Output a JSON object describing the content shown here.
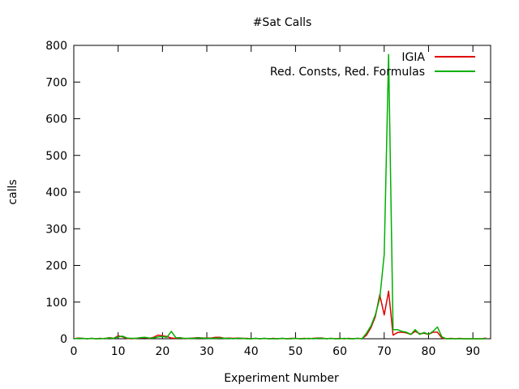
{
  "chart_data": {
    "type": "line",
    "title": "#Sat Calls",
    "xlabel": "Experiment Number",
    "ylabel": "calls",
    "xlim": [
      0,
      94
    ],
    "ylim": [
      0,
      800
    ],
    "xticks": [
      0,
      10,
      20,
      30,
      40,
      50,
      60,
      70,
      80,
      90
    ],
    "yticks": [
      0,
      100,
      200,
      300,
      400,
      500,
      600,
      700,
      800
    ],
    "grid": false,
    "legend_position": "top-right",
    "series": [
      {
        "name": "IGIA",
        "color": "#e00000",
        "x": [
          0,
          1,
          2,
          3,
          4,
          5,
          6,
          7,
          8,
          9,
          10,
          11,
          12,
          13,
          14,
          15,
          16,
          17,
          18,
          19,
          20,
          21,
          22,
          23,
          24,
          25,
          26,
          27,
          28,
          29,
          30,
          31,
          32,
          33,
          34,
          35,
          36,
          37,
          38,
          39,
          40,
          41,
          42,
          43,
          44,
          45,
          46,
          47,
          48,
          49,
          50,
          51,
          52,
          53,
          54,
          55,
          56,
          57,
          58,
          59,
          60,
          61,
          62,
          63,
          64,
          65,
          66,
          67,
          68,
          69,
          70,
          71,
          72,
          73,
          74,
          75,
          76,
          77,
          78,
          79,
          80,
          81,
          82,
          83,
          84,
          85,
          86,
          87,
          88,
          89,
          90,
          91,
          92,
          93
        ],
        "y": [
          0,
          2,
          1,
          0,
          1,
          0,
          1,
          0,
          3,
          1,
          8,
          5,
          1,
          0,
          1,
          2,
          3,
          1,
          4,
          10,
          8,
          6,
          2,
          1,
          3,
          0,
          1,
          2,
          3,
          2,
          2,
          2,
          4,
          4,
          1,
          2,
          1,
          2,
          1,
          1,
          0,
          1,
          0,
          1,
          0,
          1,
          0,
          1,
          0,
          1,
          1,
          0,
          1,
          0,
          1,
          2,
          2,
          0,
          1,
          0,
          1,
          0,
          1,
          0,
          1,
          0,
          10,
          30,
          60,
          120,
          65,
          130,
          10,
          17,
          18,
          16,
          12,
          20,
          14,
          15,
          12,
          18,
          18,
          2,
          0,
          1,
          0,
          1,
          0,
          0,
          0,
          0,
          0,
          2
        ]
      },
      {
        "name": "Red. Consts, Red. Formulas",
        "color": "#00b000",
        "x": [
          0,
          1,
          2,
          3,
          4,
          5,
          6,
          7,
          8,
          9,
          10,
          11,
          12,
          13,
          14,
          15,
          16,
          17,
          18,
          19,
          20,
          21,
          22,
          23,
          24,
          25,
          26,
          27,
          28,
          29,
          30,
          31,
          32,
          33,
          34,
          35,
          36,
          37,
          38,
          39,
          40,
          41,
          42,
          43,
          44,
          45,
          46,
          47,
          48,
          49,
          50,
          51,
          52,
          53,
          54,
          55,
          56,
          57,
          58,
          59,
          60,
          61,
          62,
          63,
          64,
          65,
          66,
          67,
          68,
          69,
          70,
          71,
          72,
          73,
          74,
          75,
          76,
          77,
          78,
          79,
          80,
          81,
          82,
          83,
          84,
          85,
          86,
          87,
          88,
          89,
          90,
          91,
          92,
          93
        ],
        "y": [
          0,
          1,
          1,
          0,
          1,
          0,
          0,
          1,
          2,
          1,
          5,
          7,
          2,
          1,
          1,
          3,
          4,
          2,
          2,
          5,
          6,
          4,
          20,
          3,
          2,
          1,
          1,
          1,
          2,
          2,
          1,
          1,
          1,
          2,
          1,
          1,
          0,
          1,
          1,
          0,
          0,
          1,
          0,
          1,
          0,
          0,
          0,
          1,
          0,
          0,
          1,
          0,
          0,
          1,
          0,
          1,
          1,
          0,
          1,
          0,
          0,
          1,
          0,
          0,
          1,
          0,
          15,
          35,
          65,
          110,
          230,
          775,
          25,
          25,
          20,
          18,
          12,
          25,
          12,
          17,
          12,
          20,
          32,
          5,
          0,
          0,
          0,
          0,
          0,
          0,
          0,
          0,
          0,
          0
        ]
      }
    ]
  }
}
